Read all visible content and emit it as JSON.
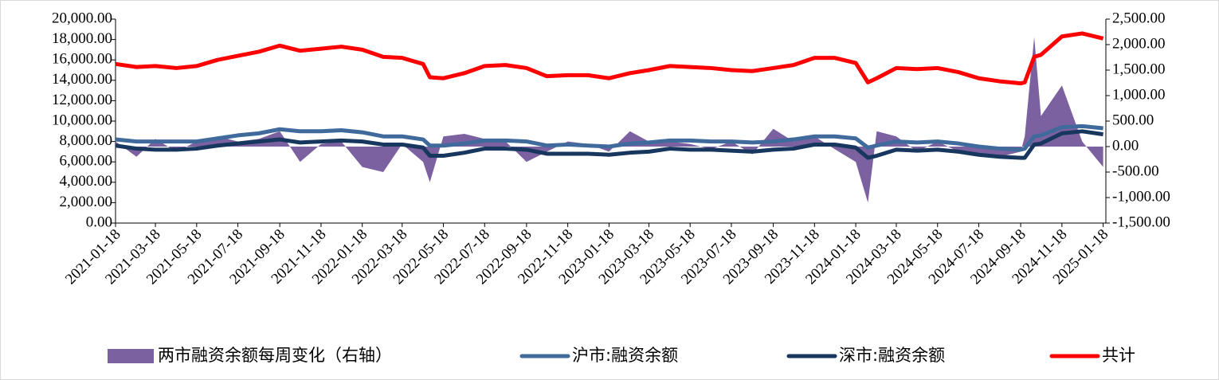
{
  "chart_data": {
    "type": "line",
    "x": [
      "2021-01-18",
      "2021-02-18",
      "2021-03-18",
      "2021-04-18",
      "2021-05-18",
      "2021-06-18",
      "2021-07-18",
      "2021-08-18",
      "2021-09-18",
      "2021-10-18",
      "2021-11-18",
      "2021-12-18",
      "2022-01-18",
      "2022-02-18",
      "2022-03-18",
      "2022-04-18",
      "2022-04-28",
      "2022-05-18",
      "2022-06-18",
      "2022-07-18",
      "2022-08-18",
      "2022-09-18",
      "2022-10-18",
      "2022-11-18",
      "2022-12-18",
      "2023-01-18",
      "2023-02-18",
      "2023-03-18",
      "2023-04-18",
      "2023-05-18",
      "2023-06-18",
      "2023-07-18",
      "2023-08-18",
      "2023-09-18",
      "2023-10-18",
      "2023-11-18",
      "2023-12-18",
      "2024-01-18",
      "2024-02-05",
      "2024-02-18",
      "2024-03-18",
      "2024-04-18",
      "2024-05-18",
      "2024-06-18",
      "2024-07-18",
      "2024-08-18",
      "2024-09-18",
      "2024-09-24",
      "2024-10-08",
      "2024-10-18",
      "2024-11-18",
      "2024-12-18",
      "2025-01-18"
    ],
    "xlim": [
      "2021-01-18",
      "2025-01-22"
    ],
    "xticks": [
      "2021-01-18",
      "2021-03-18",
      "2021-05-18",
      "2021-07-18",
      "2021-09-18",
      "2021-11-18",
      "2022-01-18",
      "2022-03-18",
      "2022-05-18",
      "2022-07-18",
      "2022-09-18",
      "2022-11-18",
      "2023-01-18",
      "2023-03-18",
      "2023-05-18",
      "2023-07-18",
      "2023-09-18",
      "2023-11-18",
      "2024-01-18",
      "2024-03-18",
      "2024-05-18",
      "2024-07-18",
      "2024-09-18",
      "2024-11-18",
      "2025-01-18"
    ],
    "ylim": [
      0,
      20000
    ],
    "yticks": [
      {
        "value": 0,
        "label": "0.00"
      },
      {
        "value": 2000,
        "label": "2,000.00"
      },
      {
        "value": 4000,
        "label": "4,000.00"
      },
      {
        "value": 6000,
        "label": "6,000.00"
      },
      {
        "value": 8000,
        "label": "8,000.00"
      },
      {
        "value": 10000,
        "label": "10,000.00"
      },
      {
        "value": 12000,
        "label": "12,000.00"
      },
      {
        "value": 14000,
        "label": "14,000.00"
      },
      {
        "value": 16000,
        "label": "16,000.00"
      },
      {
        "value": 18000,
        "label": "18,000.00"
      },
      {
        "value": 20000,
        "label": "20,000.00"
      }
    ],
    "y2lim": [
      -1500,
      2500
    ],
    "y2ticks": [
      {
        "value": -1500,
        "label": "-1,500.00"
      },
      {
        "value": -1000,
        "label": "-1,000.00"
      },
      {
        "value": -500,
        "label": "-500.00"
      },
      {
        "value": 0,
        "label": "0.00"
      },
      {
        "value": 500,
        "label": "500.00"
      },
      {
        "value": 1000,
        "label": "1,000.00"
      },
      {
        "value": 1500,
        "label": "1,500.00"
      },
      {
        "value": 2000,
        "label": "2,000.00"
      },
      {
        "value": 2500,
        "label": "2,500.00"
      }
    ],
    "series": [
      {
        "name": "两市融资余额每周变化（右轴）",
        "type": "area",
        "axis": "y2",
        "color": "#7b61a0",
        "values": [
          100,
          -200,
          150,
          -100,
          100,
          200,
          100,
          150,
          300,
          -300,
          50,
          100,
          -400,
          -500,
          50,
          -300,
          -700,
          200,
          250,
          150,
          100,
          -300,
          -100,
          100,
          50,
          -100,
          300,
          100,
          100,
          50,
          -50,
          100,
          -150,
          350,
          100,
          200,
          -50,
          -300,
          -1100,
          300,
          200,
          -100,
          100,
          -100,
          -150,
          -200,
          -100,
          200,
          2150,
          600,
          1200,
          100,
          -400
        ]
      },
      {
        "name": "沪市:融资余额",
        "type": "line",
        "color": "#3f6a9b",
        "values": [
          8200,
          8000,
          8000,
          8000,
          8000,
          8300,
          8600,
          8800,
          9200,
          9000,
          9000,
          9100,
          8900,
          8500,
          8500,
          8200,
          7600,
          7600,
          7800,
          8100,
          8100,
          8000,
          7600,
          7700,
          7600,
          7500,
          7800,
          7900,
          8100,
          8100,
          8000,
          8000,
          7900,
          8000,
          8200,
          8500,
          8500,
          8300,
          7400,
          7600,
          8000,
          7900,
          8000,
          7800,
          7500,
          7300,
          7200,
          7300,
          8500,
          8600,
          9400,
          9500,
          9300
        ]
      },
      {
        "name": "深市:融资余额",
        "type": "line",
        "color": "#17375e",
        "values": [
          7600,
          7300,
          7200,
          7200,
          7300,
          7600,
          7800,
          8000,
          8200,
          7900,
          8000,
          8100,
          8000,
          7700,
          7700,
          7400,
          6600,
          6600,
          6900,
          7300,
          7300,
          7200,
          6800,
          6800,
          6800,
          6700,
          6900,
          7000,
          7300,
          7200,
          7200,
          7100,
          7000,
          7200,
          7300,
          7700,
          7700,
          7400,
          6400,
          6600,
          7200,
          7100,
          7200,
          7000,
          6700,
          6500,
          6400,
          6400,
          7700,
          7800,
          8800,
          9000,
          8700
        ]
      },
      {
        "name": "共计",
        "type": "line",
        "color": "#ff0000",
        "values": [
          15600,
          15300,
          15400,
          15200,
          15400,
          16000,
          16400,
          16800,
          17400,
          16900,
          17100,
          17300,
          17000,
          16300,
          16200,
          15600,
          14300,
          14200,
          14700,
          15400,
          15500,
          15200,
          14400,
          14500,
          14500,
          14200,
          14700,
          15000,
          15400,
          15300,
          15200,
          15000,
          14900,
          15200,
          15500,
          16200,
          16200,
          15700,
          13800,
          14200,
          15200,
          15100,
          15200,
          14800,
          14200,
          13900,
          13700,
          13800,
          16300,
          16500,
          18300,
          18600,
          18100
        ]
      }
    ]
  }
}
